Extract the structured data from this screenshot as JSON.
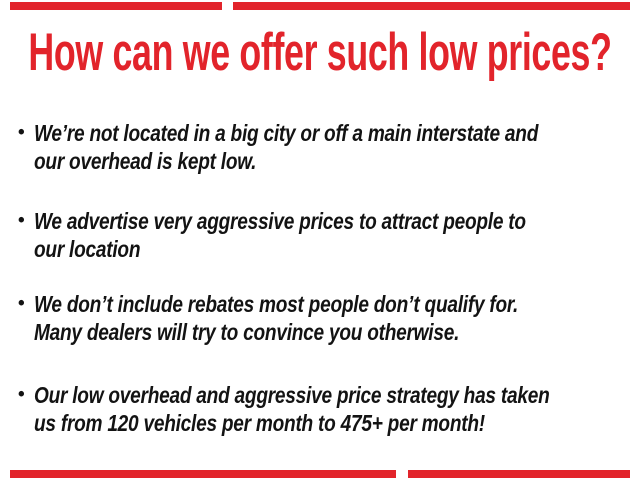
{
  "colors": {
    "accent_red": "#e2242b",
    "text_black": "#131313",
    "background": "#ffffff"
  },
  "title": {
    "text": "How can we offer such low prices?"
  },
  "bullet_glyph": "•",
  "bullets": [
    {
      "line1": "We’re not located in a big city or off a main interstate and",
      "line2": "our overhead is kept low."
    },
    {
      "line1": "We advertise very aggressive prices to attract people to",
      "line2": "our location"
    },
    {
      "line1": "We don’t include rebates most people don’t qualify for.",
      "line2": "Many dealers will try to convince you otherwise."
    },
    {
      "line1": "Our low overhead and aggressive price strategy has taken",
      "line2": "us from 120 vehicles per month to 475+ per month!"
    }
  ]
}
